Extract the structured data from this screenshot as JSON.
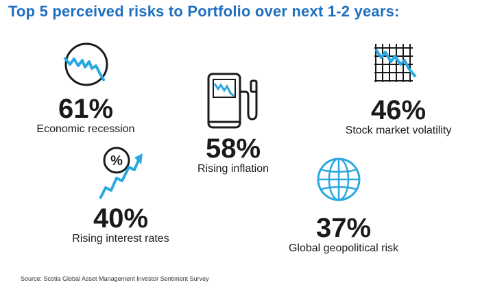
{
  "title": "Top 5 perceived risks to Portfolio over next 1-2 years:",
  "colors": {
    "accent": "#29a8e0",
    "title": "#1f6fc0",
    "text": "#1a1a1a"
  },
  "risks": [
    {
      "percent": "61%",
      "label": "Economic recession",
      "icon": "recession-chart-icon"
    },
    {
      "percent": "58%",
      "label": "Rising inflation",
      "icon": "gas-pump-icon"
    },
    {
      "percent": "46%",
      "label": "Stock market volatility",
      "icon": "volatility-grid-chart-icon"
    },
    {
      "percent": "40%",
      "label": "Rising interest rates",
      "icon": "percent-arrow-icon"
    },
    {
      "percent": "37%",
      "label": "Global geopolitical risk",
      "icon": "globe-icon"
    }
  ],
  "source": "Source: Scotia Global Asset Management Investor Sentiment Survey"
}
